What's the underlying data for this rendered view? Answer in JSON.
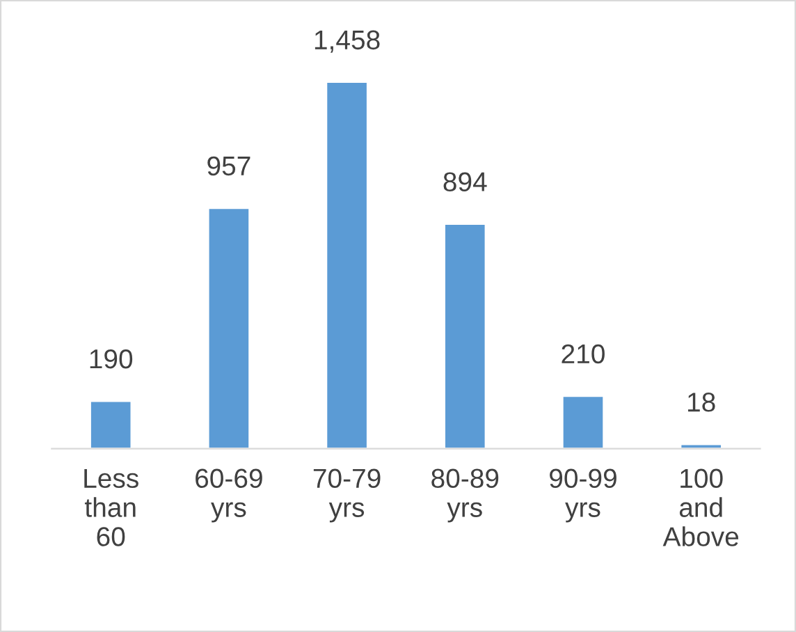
{
  "chart_data": {
    "type": "bar",
    "categories": [
      "Less\nthan\n60",
      "60-69\nyrs",
      "70-79\nyrs",
      "80-89\nyrs",
      "90-99\nyrs",
      "100\nand\nAbove"
    ],
    "values": [
      190,
      957,
      1458,
      894,
      210,
      18
    ],
    "color": "#5b9bd5",
    "value_labels": [
      "190",
      "957",
      "1,458",
      "894",
      "210",
      "18"
    ],
    "grid": false,
    "legend": false
  }
}
